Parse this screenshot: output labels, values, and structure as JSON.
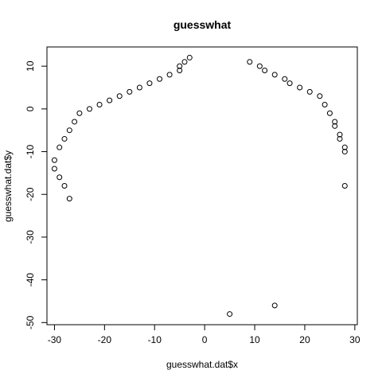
{
  "chart_data": {
    "type": "scatter",
    "title": "guesswhat",
    "xlabel": "guesswhat.dat$x",
    "ylabel": "guesswhat.dat$y",
    "xlim": [
      -31.5,
      30.5
    ],
    "ylim": [
      -50.5,
      14.5
    ],
    "xticks": [
      -30,
      -20,
      -10,
      0,
      10,
      20,
      30
    ],
    "yticks": [
      -50,
      -40,
      -30,
      -20,
      -10,
      0,
      10
    ],
    "marker": "open-circle",
    "grid": false,
    "legend": "none",
    "points": [
      {
        "x": -3,
        "y": 12
      },
      {
        "x": -4,
        "y": 11
      },
      {
        "x": -5,
        "y": 10
      },
      {
        "x": -5,
        "y": 9
      },
      {
        "x": -7,
        "y": 8
      },
      {
        "x": -9,
        "y": 7
      },
      {
        "x": -11,
        "y": 6
      },
      {
        "x": -13,
        "y": 5
      },
      {
        "x": -15,
        "y": 4
      },
      {
        "x": -17,
        "y": 3
      },
      {
        "x": -19,
        "y": 2
      },
      {
        "x": -21,
        "y": 1
      },
      {
        "x": -23,
        "y": 0
      },
      {
        "x": -25,
        "y": -1
      },
      {
        "x": -26,
        "y": -3
      },
      {
        "x": -27,
        "y": -5
      },
      {
        "x": -28,
        "y": -7
      },
      {
        "x": -29,
        "y": -9
      },
      {
        "x": -30,
        "y": -12
      },
      {
        "x": -30,
        "y": -14
      },
      {
        "x": -29,
        "y": -16
      },
      {
        "x": -28,
        "y": -18
      },
      {
        "x": -27,
        "y": -21
      },
      {
        "x": 9,
        "y": 11
      },
      {
        "x": 11,
        "y": 10
      },
      {
        "x": 12,
        "y": 9
      },
      {
        "x": 14,
        "y": 8
      },
      {
        "x": 16,
        "y": 7
      },
      {
        "x": 17,
        "y": 6
      },
      {
        "x": 19,
        "y": 5
      },
      {
        "x": 21,
        "y": 4
      },
      {
        "x": 23,
        "y": 3
      },
      {
        "x": 24,
        "y": 1
      },
      {
        "x": 25,
        "y": -1
      },
      {
        "x": 26,
        "y": -3
      },
      {
        "x": 26,
        "y": -4
      },
      {
        "x": 27,
        "y": -6
      },
      {
        "x": 27,
        "y": -7
      },
      {
        "x": 28,
        "y": -9
      },
      {
        "x": 28,
        "y": -10
      },
      {
        "x": 28,
        "y": -18
      },
      {
        "x": 5,
        "y": -48
      },
      {
        "x": 14,
        "y": -46
      }
    ]
  }
}
